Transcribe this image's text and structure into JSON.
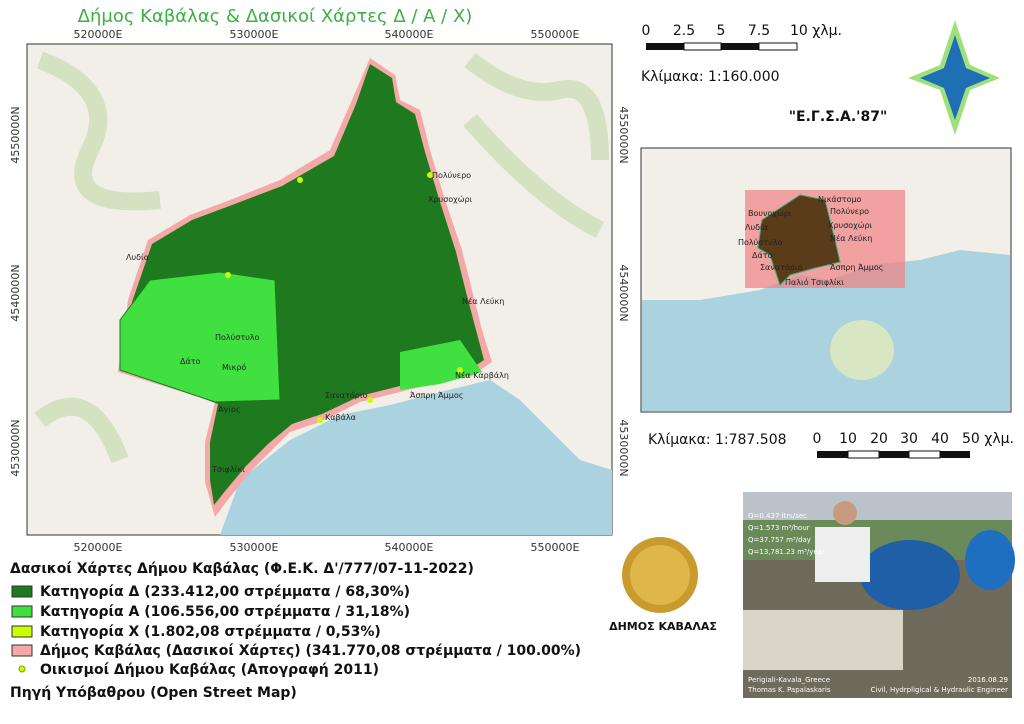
{
  "title": "Δήμος Καβάλας & Δασικοί Χάρτες Δ / Α / Χ)",
  "map": {
    "grid_x": [
      "520000E",
      "530000E",
      "540000E",
      "550000E"
    ],
    "grid_y": [
      "4550000N",
      "4540000N",
      "4530000N"
    ],
    "places": [
      "Πολύνερο",
      "Χρυσοχώρι",
      "Λυδία",
      "Πολύστυλο",
      "Δάτο",
      "Μικρό",
      "Άγιος",
      "Νέα Λεύκη",
      "Νέα Καρβάλη",
      "Σανατόριο",
      "Άσπρη Άμμος",
      "Καβάλα",
      "Τσιφλίκι"
    ],
    "srs": "\"Ε.Γ.Σ.Α.'87\""
  },
  "scale_main": {
    "labels": [
      "0",
      "2.5",
      "5",
      "7.5",
      "10 χλμ."
    ],
    "text": "Κλίμακα: 1:160.000"
  },
  "inset": {
    "places": [
      "Βουνοχώρι",
      "Λυδία",
      "Πολύστυλο",
      "Δάτο",
      "Σανατόριο",
      "Παλιό Τσιφλίκι",
      "Άσπρη Άμμος",
      "Νέα Λεύκη",
      "Χρυσοχώρι",
      "Πολύνερο",
      "Νικάστομο"
    ],
    "scale_text": "Κλίμακα: 1:787.508",
    "labels": [
      "0",
      "10",
      "20",
      "30",
      "40",
      "50 χλμ."
    ]
  },
  "legend": {
    "title": "Δασικοί Χάρτες Δήμου Καβάλας (Φ.Ε.Κ. Δ'/777/07-11-2022)",
    "items": [
      "Κατηγορία Δ (233.412,00 στρέμματα / 68,30%)",
      "Κατηγορία Α (106.556,00 στρέμματα / 31,18%)",
      "Κατηγορία Χ (1.802,08 στρέμματα / 0,53%)",
      "Δήμος Καβάλας (Δασικοί Χάρτες) (341.770,08 στρέμματα / 100.00%)",
      "Οικισμοί Δήμου Καβάλας (Απογραφή 2011)"
    ],
    "source": "Πηγή Υπόβαθρου (Open Street Map)"
  },
  "logo": {
    "caption": "ΔΗΜΟΣ ΚΑΒΑΛΑΣ"
  },
  "photo": {
    "flow": [
      "Q=0.437 ltrs/sec",
      "Q=1.573 m³/hour",
      "Q=37.757 m³/day",
      "Q=13,781.23 m³/year"
    ],
    "location": "Perigiali-Kavala_Greece",
    "date": "2016.08.29",
    "author": "Thomas K. Papalaskaris",
    "profession": "Civil, Hydrpligical & Hydraulic Engineer"
  }
}
